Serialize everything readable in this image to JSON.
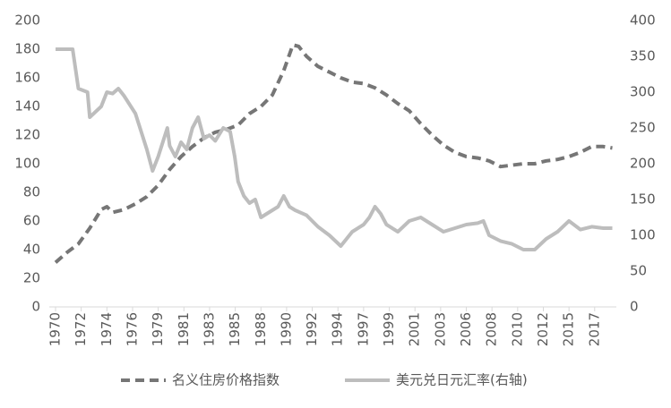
{
  "chart_data": {
    "type": "line",
    "xlim": [
      1969.45,
      2019.15
    ],
    "xticks": [
      {
        "value": 1970,
        "label": "1970"
      },
      {
        "value": 1972.25,
        "label": "1972"
      },
      {
        "value": 1974.5,
        "label": "1974"
      },
      {
        "value": 1976.75,
        "label": "1976"
      },
      {
        "value": 1979,
        "label": "1979"
      },
      {
        "value": 1981.25,
        "label": "1981"
      },
      {
        "value": 1983.5,
        "label": "1983"
      },
      {
        "value": 1985.75,
        "label": "1985"
      },
      {
        "value": 1988,
        "label": "1988"
      },
      {
        "value": 1990.25,
        "label": "1990"
      },
      {
        "value": 1992.5,
        "label": "1992"
      },
      {
        "value": 1994.75,
        "label": "1994"
      },
      {
        "value": 1997,
        "label": "1997"
      },
      {
        "value": 1999.25,
        "label": "1999"
      },
      {
        "value": 2001.5,
        "label": "2001"
      },
      {
        "value": 2003.75,
        "label": "2003"
      },
      {
        "value": 2006,
        "label": "2006"
      },
      {
        "value": 2008.25,
        "label": "2008"
      },
      {
        "value": 2010.5,
        "label": "2010"
      },
      {
        "value": 2012.75,
        "label": "2012"
      },
      {
        "value": 2015,
        "label": "2015"
      },
      {
        "value": 2017.25,
        "label": "2017"
      }
    ],
    "ylim": [
      0,
      200
    ],
    "yticks": [
      0,
      20,
      40,
      60,
      80,
      100,
      120,
      140,
      160,
      180,
      200
    ],
    "y2lim": [
      0,
      400
    ],
    "y2ticks": [
      0,
      50,
      100,
      150,
      200,
      250,
      300,
      350,
      400
    ],
    "grid": false,
    "legend": "bottom",
    "series": [
      {
        "name": "名义住房价格指数",
        "color": "#767676",
        "dash": true,
        "axis": "y",
        "x": [
          1970,
          1971,
          1972,
          1973,
          1974,
          1974.5,
          1975,
          1976,
          1977,
          1978,
          1979,
          1980,
          1981,
          1982,
          1983,
          1984,
          1985,
          1986,
          1987,
          1988,
          1989,
          1990,
          1990.8,
          1991.3,
          1992,
          1993,
          1994,
          1995,
          1996,
          1997,
          1998,
          1999,
          2000,
          2001,
          2002,
          2003,
          2004,
          2005,
          2006,
          2007,
          2008,
          2009,
          2010,
          2011,
          2012,
          2013,
          2014,
          2015,
          2016,
          2017,
          2018,
          2018.8
        ],
        "values": [
          31,
          38,
          44,
          55,
          68,
          70,
          66,
          68,
          72,
          77,
          85,
          96,
          105,
          112,
          118,
          122,
          124,
          127,
          135,
          140,
          148,
          165,
          183,
          182,
          175,
          168,
          164,
          160,
          157,
          156,
          153,
          148,
          142,
          137,
          128,
          120,
          113,
          108,
          105,
          104,
          102,
          98,
          99,
          100,
          100,
          102,
          103,
          105,
          108,
          112,
          112,
          111
        ]
      },
      {
        "name": "美元兑日元汇率(右轴)",
        "color": "#bdbdbd",
        "dash": false,
        "axis": "y2",
        "x": [
          1970,
          1971.5,
          1972,
          1972.8,
          1973,
          1974,
          1974.5,
          1975,
          1975.5,
          1976,
          1977,
          1978,
          1978.5,
          1979,
          1979.8,
          1980,
          1980.5,
          1981,
          1981.5,
          1982,
          1982.5,
          1983,
          1983.5,
          1984,
          1984.7,
          1985.3,
          1985.7,
          1986,
          1986.5,
          1987,
          1987.5,
          1988,
          1988.5,
          1989,
          1989.5,
          1990,
          1990.5,
          1991,
          1992,
          1993,
          1994,
          1995,
          1995.5,
          1996,
          1997,
          1997.5,
          1998,
          1998.5,
          1999,
          2000,
          2001,
          2002,
          2003,
          2004,
          2005,
          2006,
          2007,
          2007.5,
          2008,
          2009,
          2010,
          2011,
          2012,
          2013,
          2014,
          2015,
          2016,
          2017,
          2018,
          2018.8
        ],
        "values": [
          360,
          360,
          305,
          300,
          265,
          280,
          300,
          298,
          305,
          295,
          270,
          220,
          190,
          210,
          250,
          225,
          210,
          230,
          220,
          250,
          265,
          235,
          240,
          232,
          250,
          245,
          210,
          175,
          155,
          145,
          150,
          125,
          130,
          135,
          140,
          155,
          140,
          135,
          128,
          112,
          100,
          85,
          95,
          105,
          115,
          125,
          140,
          130,
          115,
          105,
          120,
          125,
          115,
          105,
          110,
          115,
          117,
          120,
          100,
          92,
          88,
          80,
          80,
          95,
          105,
          120,
          108,
          112,
          110,
          110
        ]
      }
    ]
  }
}
